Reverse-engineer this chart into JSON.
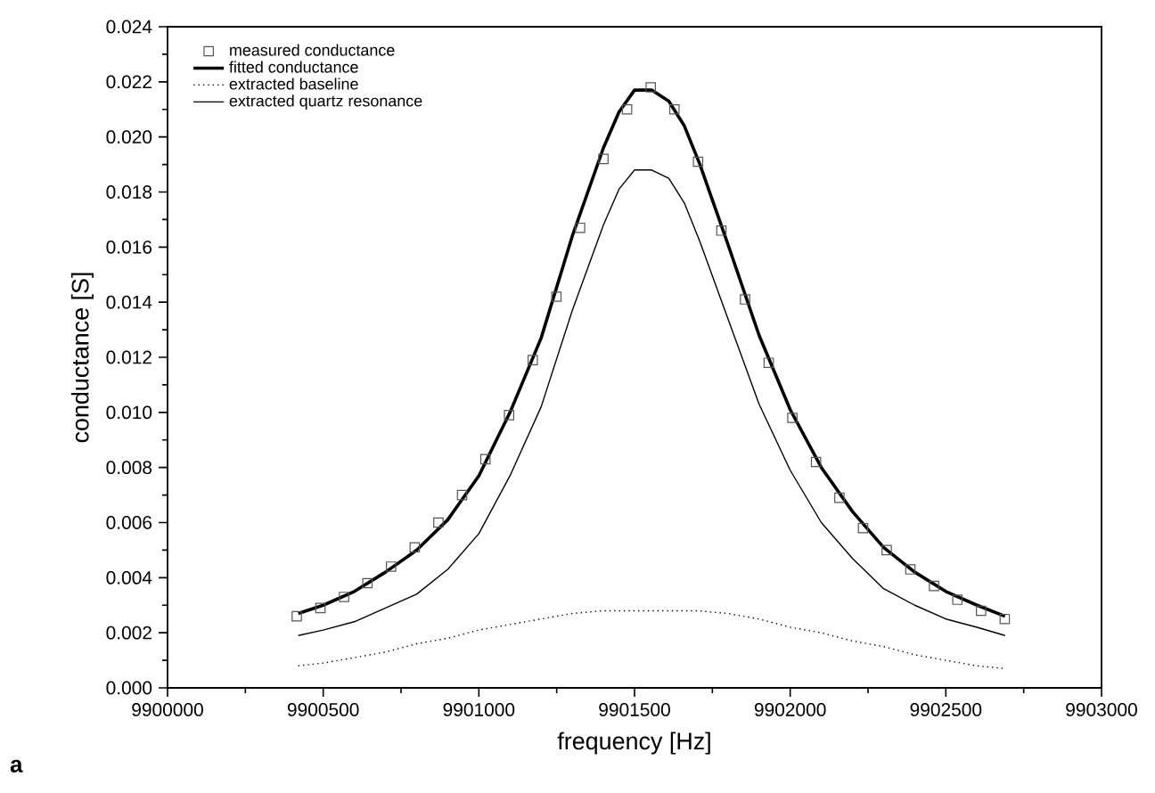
{
  "chart_data": {
    "type": "line",
    "xlabel": "frequency [Hz]",
    "ylabel": "conductance [S]",
    "xlim": [
      9900000,
      9903000
    ],
    "ylim": [
      0,
      0.024
    ],
    "xticks": [
      9900000,
      9900500,
      9901000,
      9901500,
      9902000,
      9902500,
      9903000
    ],
    "yticks": [
      {
        "value": 0,
        "label": "0.000"
      },
      {
        "value": 0.002,
        "label": "0.002"
      },
      {
        "value": 0.004,
        "label": "0.004"
      },
      {
        "value": 0.006,
        "label": "0.006"
      },
      {
        "value": 0.008,
        "label": "0.008"
      },
      {
        "value": 0.01,
        "label": "0.010"
      },
      {
        "value": 0.012,
        "label": "0.012"
      },
      {
        "value": 0.014,
        "label": "0.014"
      },
      {
        "value": 0.016,
        "label": "0.016"
      },
      {
        "value": 0.018,
        "label": "0.018"
      },
      {
        "value": 0.02,
        "label": "0.020"
      },
      {
        "value": 0.022,
        "label": "0.022"
      },
      {
        "value": 0.024,
        "label": "0.024"
      }
    ],
    "grid": false,
    "legend": "top left",
    "annotations": [
      "a"
    ],
    "series": [
      {
        "name": "measured conductance",
        "type": "scatter",
        "marker": "square",
        "color": "#555555",
        "x": [
          9900415,
          9900491,
          9900567,
          9900642,
          9900718,
          9900794,
          9900870,
          9900946,
          9901021,
          9901097,
          9901173,
          9901249,
          9901325,
          9901400,
          9901476,
          9901552,
          9901628,
          9901704,
          9901779,
          9901855,
          9901931,
          9902007,
          9902083,
          9902158,
          9902234,
          9902310,
          9902386,
          9902462,
          9902537,
          9902613,
          9902689
        ],
        "values": [
          0.0026,
          0.0029,
          0.0033,
          0.0038,
          0.0044,
          0.0051,
          0.006,
          0.007,
          0.0083,
          0.0099,
          0.0119,
          0.0142,
          0.0167,
          0.0192,
          0.021,
          0.0218,
          0.021,
          0.0191,
          0.0166,
          0.0141,
          0.0118,
          0.0098,
          0.0082,
          0.0069,
          0.0058,
          0.005,
          0.0043,
          0.0037,
          0.0032,
          0.0028,
          0.0025
        ]
      },
      {
        "name": "fitted conductance",
        "line_style": "solid",
        "color": "#000000",
        "x": [
          9900420,
          9900500,
          9900600,
          9900700,
          9900800,
          9900900,
          9901000,
          9901100,
          9901200,
          9901300,
          9901400,
          9901450,
          9901500,
          9901555,
          9901610,
          9901660,
          9901710,
          9901800,
          9901900,
          9902000,
          9902100,
          9902200,
          9902300,
          9902400,
          9902500,
          9902600,
          9902690
        ],
        "values": [
          0.0027,
          0.003,
          0.0035,
          0.0042,
          0.005,
          0.0061,
          0.0077,
          0.01,
          0.0127,
          0.0164,
          0.0196,
          0.0209,
          0.0217,
          0.0217,
          0.0213,
          0.0204,
          0.019,
          0.0161,
          0.0128,
          0.0101,
          0.008,
          0.0064,
          0.0051,
          0.0042,
          0.0035,
          0.003,
          0.0026
        ]
      },
      {
        "name": "extracted baseline",
        "line_style": "dotted",
        "color": "#000000",
        "x": [
          9900420,
          9900500,
          9900600,
          9900700,
          9900800,
          9900900,
          9901000,
          9901100,
          9901200,
          9901300,
          9901400,
          9901500,
          9901600,
          9901700,
          9901800,
          9901900,
          9902000,
          9902100,
          9902200,
          9902300,
          9902400,
          9902500,
          9902600,
          9902690
        ],
        "values": [
          0.0008,
          0.0009,
          0.0011,
          0.0013,
          0.0016,
          0.0018,
          0.0021,
          0.0023,
          0.0025,
          0.0027,
          0.0028,
          0.0028,
          0.0028,
          0.0028,
          0.0027,
          0.0025,
          0.0022,
          0.002,
          0.0017,
          0.0015,
          0.0012,
          0.001,
          0.0008,
          0.0007
        ]
      },
      {
        "name": "extracted quartz resonance",
        "line_style": "solid",
        "color": "#000000",
        "x": [
          9900420,
          9900500,
          9900600,
          9900700,
          9900800,
          9900900,
          9901000,
          9901100,
          9901200,
          9901300,
          9901400,
          9901450,
          9901500,
          9901555,
          9901610,
          9901660,
          9901710,
          9901800,
          9901900,
          9902000,
          9902100,
          9902200,
          9902300,
          9902400,
          9902500,
          9902600,
          9902690
        ],
        "values": [
          0.0019,
          0.0021,
          0.0024,
          0.0029,
          0.0034,
          0.0043,
          0.0056,
          0.0077,
          0.0102,
          0.0137,
          0.0168,
          0.0181,
          0.0188,
          0.0188,
          0.0185,
          0.0176,
          0.0162,
          0.0134,
          0.0103,
          0.0079,
          0.006,
          0.0047,
          0.0036,
          0.003,
          0.0025,
          0.0022,
          0.0019
        ]
      }
    ]
  }
}
